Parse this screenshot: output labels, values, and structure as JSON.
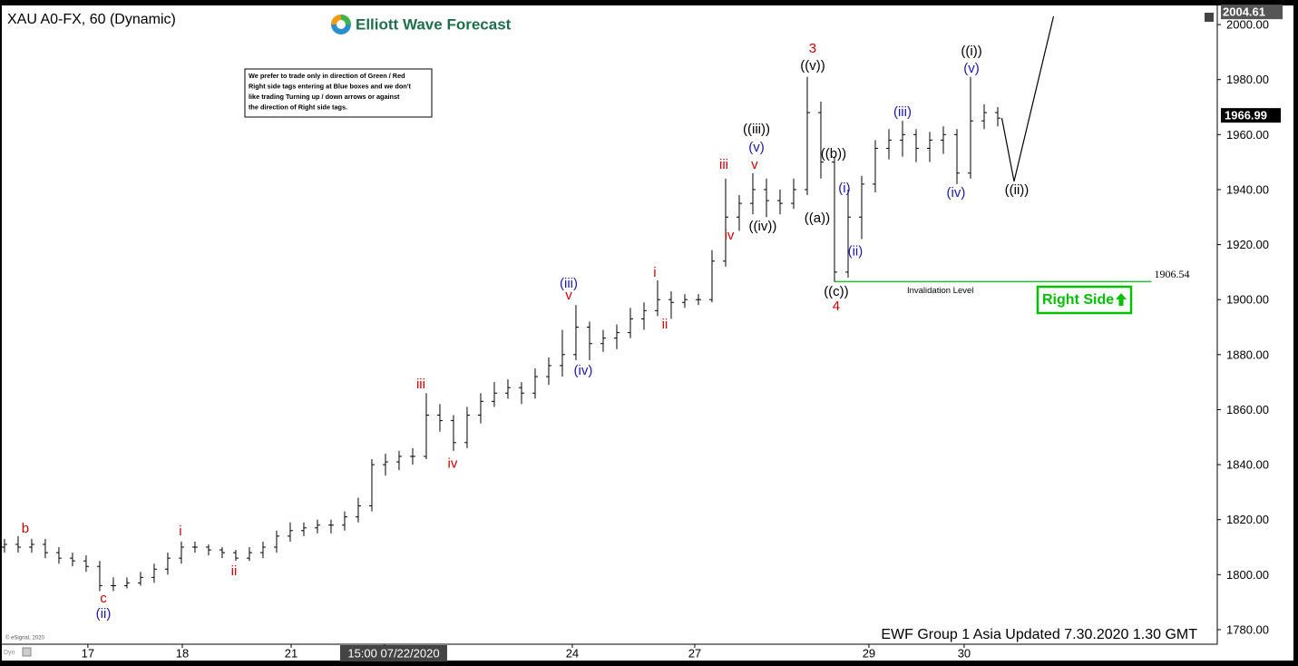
{
  "chart_data": {
    "type": "ohlc",
    "title": "XAU A0-FX, 60 (Dynamic)",
    "logo": "Elliott Wave Forecast",
    "note": [
      "We prefer to trade only in direction of Green / Red",
      "Right side tags entering at Blue boxes and we don't",
      "like trading Turning up / down arrows or against",
      "the direction of Right side tags."
    ],
    "color": "#000000",
    "x": [
      0,
      1,
      2,
      3,
      4,
      5,
      6,
      7,
      8,
      9,
      10,
      11,
      12,
      13,
      14,
      15,
      16,
      17,
      18,
      19,
      20,
      21,
      22,
      23,
      24,
      25,
      26,
      27,
      28,
      29,
      30,
      31,
      32,
      33,
      34,
      35,
      36,
      37,
      38,
      39,
      40,
      41,
      42,
      43,
      44,
      45,
      46,
      47,
      48,
      49,
      50,
      51,
      52,
      53,
      54,
      55,
      56,
      57,
      58,
      59,
      60,
      61,
      62,
      63,
      64,
      65,
      66,
      67,
      68,
      69,
      70,
      71,
      72,
      73
    ],
    "open": [
      1810,
      1811,
      1810,
      1811,
      1808,
      1806,
      1805,
      1803,
      1796,
      1796,
      1797,
      1799,
      1802,
      1806,
      1810,
      1810,
      1809,
      1808,
      1806,
      1808,
      1810,
      1814,
      1816,
      1817,
      1818,
      1818,
      1821,
      1825,
      1840,
      1841,
      1843,
      1843,
      1858,
      1856,
      1848,
      1858,
      1863,
      1866,
      1868,
      1866,
      1872,
      1876,
      1880,
      1890,
      1884,
      1886,
      1888,
      1893,
      1896,
      1900,
      1899,
      1900,
      1900,
      1914,
      1930,
      1935,
      1940,
      1936,
      1935,
      1940,
      1968,
      1950,
      1910,
      1930,
      1942,
      1955,
      1958,
      1960,
      1955,
      1958,
      1960,
      1946,
      1965,
      1968
    ],
    "high": [
      1813,
      1814,
      1813,
      1813,
      1810,
      1808,
      1807,
      1805,
      1799,
      1799,
      1801,
      1804,
      1808,
      1812,
      1812,
      1811,
      1810,
      1809,
      1810,
      1812,
      1816,
      1819,
      1819,
      1820,
      1820,
      1823,
      1828,
      1842,
      1844,
      1845,
      1846,
      1866,
      1862,
      1858,
      1861,
      1866,
      1870,
      1871,
      1870,
      1875,
      1879,
      1889,
      1898,
      1892,
      1889,
      1891,
      1897,
      1899,
      1907,
      1903,
      1902,
      1902,
      1918,
      1944,
      1938,
      1946,
      1944,
      1940,
      1944,
      1981,
      1972,
      1952,
      1940,
      1945,
      1958,
      1962,
      1965,
      1962,
      1961,
      1963,
      1962,
      1981,
      1971,
      1970
    ],
    "low": [
      1808,
      1808,
      1808,
      1806,
      1804,
      1803,
      1801,
      1794,
      1794,
      1795,
      1796,
      1797,
      1800,
      1804,
      1808,
      1807,
      1806,
      1805,
      1805,
      1806,
      1808,
      1812,
      1814,
      1815,
      1815,
      1816,
      1819,
      1823,
      1836,
      1838,
      1840,
      1842,
      1852,
      1845,
      1846,
      1855,
      1861,
      1864,
      1862,
      1864,
      1869,
      1872,
      1878,
      1878,
      1881,
      1882,
      1886,
      1889,
      1894,
      1893,
      1897,
      1898,
      1899,
      1912,
      1925,
      1931,
      1930,
      1931,
      1933,
      1938,
      1944,
      1906.5,
      1908,
      1922,
      1939,
      1951,
      1952,
      1950,
      1950,
      1953,
      1942,
      1944,
      1962,
      1963
    ],
    "close": [
      1811,
      1810,
      1811,
      1808,
      1806,
      1805,
      1803,
      1796,
      1796,
      1797,
      1799,
      1802,
      1806,
      1810,
      1810,
      1809,
      1808,
      1806,
      1808,
      1810,
      1814,
      1816,
      1817,
      1818,
      1818,
      1821,
      1825,
      1840,
      1841,
      1843,
      1843,
      1858,
      1856,
      1848,
      1858,
      1863,
      1866,
      1868,
      1866,
      1872,
      1876,
      1880,
      1890,
      1884,
      1886,
      1888,
      1893,
      1896,
      1900,
      1899,
      1900,
      1900,
      1914,
      1930,
      1935,
      1940,
      1936,
      1935,
      1940,
      1968,
      1950,
      1910,
      1930,
      1942,
      1955,
      1958,
      1960,
      1955,
      1958,
      1960,
      1946,
      1965,
      1968,
      1966
    ],
    "xlim": [
      -0.33,
      89
    ],
    "ylim": [
      1774.7,
      2006.3
    ],
    "xticks": [
      {
        "value": 6.13,
        "label": "17"
      },
      {
        "value": 13.07,
        "label": "18"
      },
      {
        "value": 21.07,
        "label": "21"
      },
      {
        "value": 27.93,
        "label": "22"
      },
      {
        "value": 41.73,
        "label": "24"
      },
      {
        "value": 50.73,
        "label": "27"
      },
      {
        "value": 63.53,
        "label": "29"
      },
      {
        "value": 70.53,
        "label": "30"
      }
    ],
    "yticks": [
      {
        "value": 1780,
        "label": "1780.00"
      },
      {
        "value": 1800,
        "label": "1800.00"
      },
      {
        "value": 1820,
        "label": "1820.00"
      },
      {
        "value": 1840,
        "label": "1840.00"
      },
      {
        "value": 1860,
        "label": "1860.00"
      },
      {
        "value": 1880,
        "label": "1880.00"
      },
      {
        "value": 1900,
        "label": "1900.00"
      },
      {
        "value": 1920,
        "label": "1920.00"
      },
      {
        "value": 1940,
        "label": "1940.00"
      },
      {
        "value": 1960,
        "label": "1960.00"
      },
      {
        "value": 1980,
        "label": "1980.00"
      },
      {
        "value": 2000,
        "label": "2000.00"
      }
    ],
    "crosshair_label": {
      "value": 28.6,
      "label": "15:00 07/22/2020"
    },
    "current_price": 1966.99,
    "top_price": 2004.61,
    "projection": {
      "x": [
        73.3,
        74.2,
        77.1
      ],
      "values": [
        1966,
        1943,
        2003
      ]
    },
    "invalidation": {
      "value": 1906.54,
      "x": [
        61,
        84.3
      ],
      "color": "#2db82d",
      "text": "Invalidation Level"
    },
    "right_side": "Right Side",
    "footer": "EWF Group 1 Asia  Updated 7.30.2020 1.30 GMT",
    "copyright": "© eSignal, 2020",
    "corner": "Dyn",
    "annotations": [
      {
        "text": "b",
        "x": 1.53,
        "y": 1816.6,
        "color": "#cc0000"
      },
      {
        "text": "c",
        "x": 7.27,
        "y": 1791.2,
        "color": "#cc0000"
      },
      {
        "text": "(ii)",
        "x": 7.27,
        "y": 1785.6,
        "color": "#1a1aa6"
      },
      {
        "text": "i",
        "x": 12.93,
        "y": 1815.6,
        "color": "#cc0000"
      },
      {
        "text": "ii",
        "x": 16.87,
        "y": 1801.1,
        "color": "#cc0000"
      },
      {
        "text": "iii",
        "x": 30.6,
        "y": 1869.1,
        "color": "#cc0000"
      },
      {
        "text": "iv",
        "x": 32.93,
        "y": 1840.1,
        "color": "#cc0000"
      },
      {
        "text": "(iii)",
        "x": 41.47,
        "y": 1905.7,
        "color": "#1a1aa6"
      },
      {
        "text": "v",
        "x": 41.47,
        "y": 1901.4,
        "color": "#cc0000"
      },
      {
        "text": "(iv)",
        "x": 42.53,
        "y": 1874.0,
        "color": "#1a1aa6"
      },
      {
        "text": "i",
        "x": 47.8,
        "y": 1909.6,
        "color": "#cc0000"
      },
      {
        "text": "ii",
        "x": 48.53,
        "y": 1890.8,
        "color": "#cc0000"
      },
      {
        "text": "iii",
        "x": 52.87,
        "y": 1948.9,
        "color": "#cc0000"
      },
      {
        "text": "iv",
        "x": 53.27,
        "y": 1923.1,
        "color": "#cc0000"
      },
      {
        "text": "v",
        "x": 55.13,
        "y": 1948.9,
        "color": "#cc0000"
      },
      {
        "text": "(v)",
        "x": 55.27,
        "y": 1955.2,
        "color": "#1a1aa6"
      },
      {
        "text": "((iii))",
        "x": 55.27,
        "y": 1961.8,
        "color": "#000000"
      },
      {
        "text": "((iv))",
        "x": 55.73,
        "y": 1926.4,
        "color": "#000000"
      },
      {
        "text": "3",
        "x": 59.4,
        "y": 1991.1,
        "color": "#cc0000"
      },
      {
        "text": "((v))",
        "x": 59.4,
        "y": 1984.8,
        "color": "#000000"
      },
      {
        "text": "((b))",
        "x": 60.93,
        "y": 1952.8,
        "color": "#000000"
      },
      {
        "text": "((a))",
        "x": 59.73,
        "y": 1929.4,
        "color": "#000000"
      },
      {
        "text": "(i)",
        "x": 61.73,
        "y": 1940.3,
        "color": "#1a1aa6"
      },
      {
        "text": "(ii)",
        "x": 62.53,
        "y": 1917.3,
        "color": "#1a1aa6"
      },
      {
        "text": "((c))",
        "x": 61.13,
        "y": 1902.7,
        "color": "#000000"
      },
      {
        "text": "4",
        "x": 61.13,
        "y": 1897.4,
        "color": "#cc0000"
      },
      {
        "text": "(iii)",
        "x": 66.0,
        "y": 1968.0,
        "color": "#1a1aa6"
      },
      {
        "text": "(iv)",
        "x": 69.93,
        "y": 1938.6,
        "color": "#1a1aa6"
      },
      {
        "text": "((i))",
        "x": 71.07,
        "y": 1990.1,
        "color": "#000000"
      },
      {
        "text": "(v)",
        "x": 71.07,
        "y": 1983.8,
        "color": "#1a1aa6"
      },
      {
        "text": "((ii))",
        "x": 74.4,
        "y": 1939.6,
        "color": "#000000"
      }
    ]
  }
}
